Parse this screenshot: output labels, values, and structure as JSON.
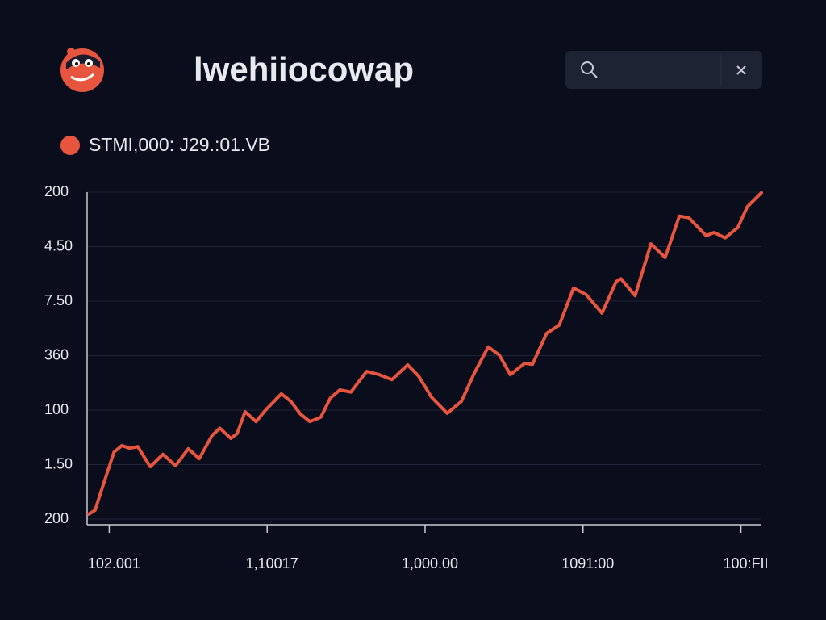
{
  "header": {
    "title": "lwehiiocowap"
  },
  "chart_data": {
    "type": "line",
    "x": [
      -0.13,
      -0.09,
      -0.05,
      0.03,
      0.08,
      0.13,
      0.18,
      0.26,
      0.34,
      0.42,
      0.5,
      0.57,
      0.65,
      0.7,
      0.77,
      0.81,
      0.86,
      0.93,
      0.99,
      1.09,
      1.15,
      1.21,
      1.27,
      1.34,
      1.4,
      1.46,
      1.53,
      1.63,
      1.71,
      1.79,
      1.89,
      1.96,
      2.04,
      2.14,
      2.23,
      2.31,
      2.4,
      2.47,
      2.54,
      2.63,
      2.68,
      2.77,
      2.85,
      2.94,
      3.02,
      3.12,
      3.21,
      3.24,
      3.33,
      3.43,
      3.52,
      3.61,
      3.67,
      3.78,
      3.83,
      3.9,
      3.98,
      4.04,
      4.13
    ],
    "series": [
      {
        "name": "STMI,000: J29.:01.VB",
        "color": "#e8553f",
        "values": [
          0.09,
          0.16,
          0.52,
          1.23,
          1.35,
          1.3,
          1.33,
          0.96,
          1.19,
          0.98,
          1.29,
          1.11,
          1.53,
          1.67,
          1.48,
          1.57,
          1.97,
          1.79,
          2.0,
          2.3,
          2.16,
          1.93,
          1.79,
          1.87,
          2.22,
          2.37,
          2.33,
          2.71,
          2.65,
          2.56,
          2.83,
          2.62,
          2.24,
          1.94,
          2.16,
          2.67,
          3.16,
          3.01,
          2.65,
          2.86,
          2.84,
          3.41,
          3.56,
          4.24,
          4.12,
          3.78,
          4.36,
          4.41,
          4.1,
          5.05,
          4.8,
          5.56,
          5.53,
          5.2,
          5.26,
          5.16,
          5.35,
          5.73,
          5.99
        ]
      }
    ],
    "xlim": [
      -0.14,
      4.13
    ],
    "xticks": [
      {
        "value": 0,
        "label": "102.001"
      },
      {
        "value": 1,
        "label": "1,10017"
      },
      {
        "value": 2,
        "label": "1,000.00"
      },
      {
        "value": 3,
        "label": "1091:00"
      },
      {
        "value": 4,
        "label": "100:FII"
      }
    ],
    "ylim": [
      0,
      6
    ],
    "yticks": [
      {
        "value": 6,
        "label": "200"
      },
      {
        "value": 5,
        "label": "4.50"
      },
      {
        "value": 4,
        "label": "7.50"
      },
      {
        "value": 3,
        "label": "360"
      },
      {
        "value": 2,
        "label": "100"
      },
      {
        "value": 1,
        "label": "1.50"
      },
      {
        "value": 0,
        "label": "200"
      }
    ],
    "grid": true
  }
}
